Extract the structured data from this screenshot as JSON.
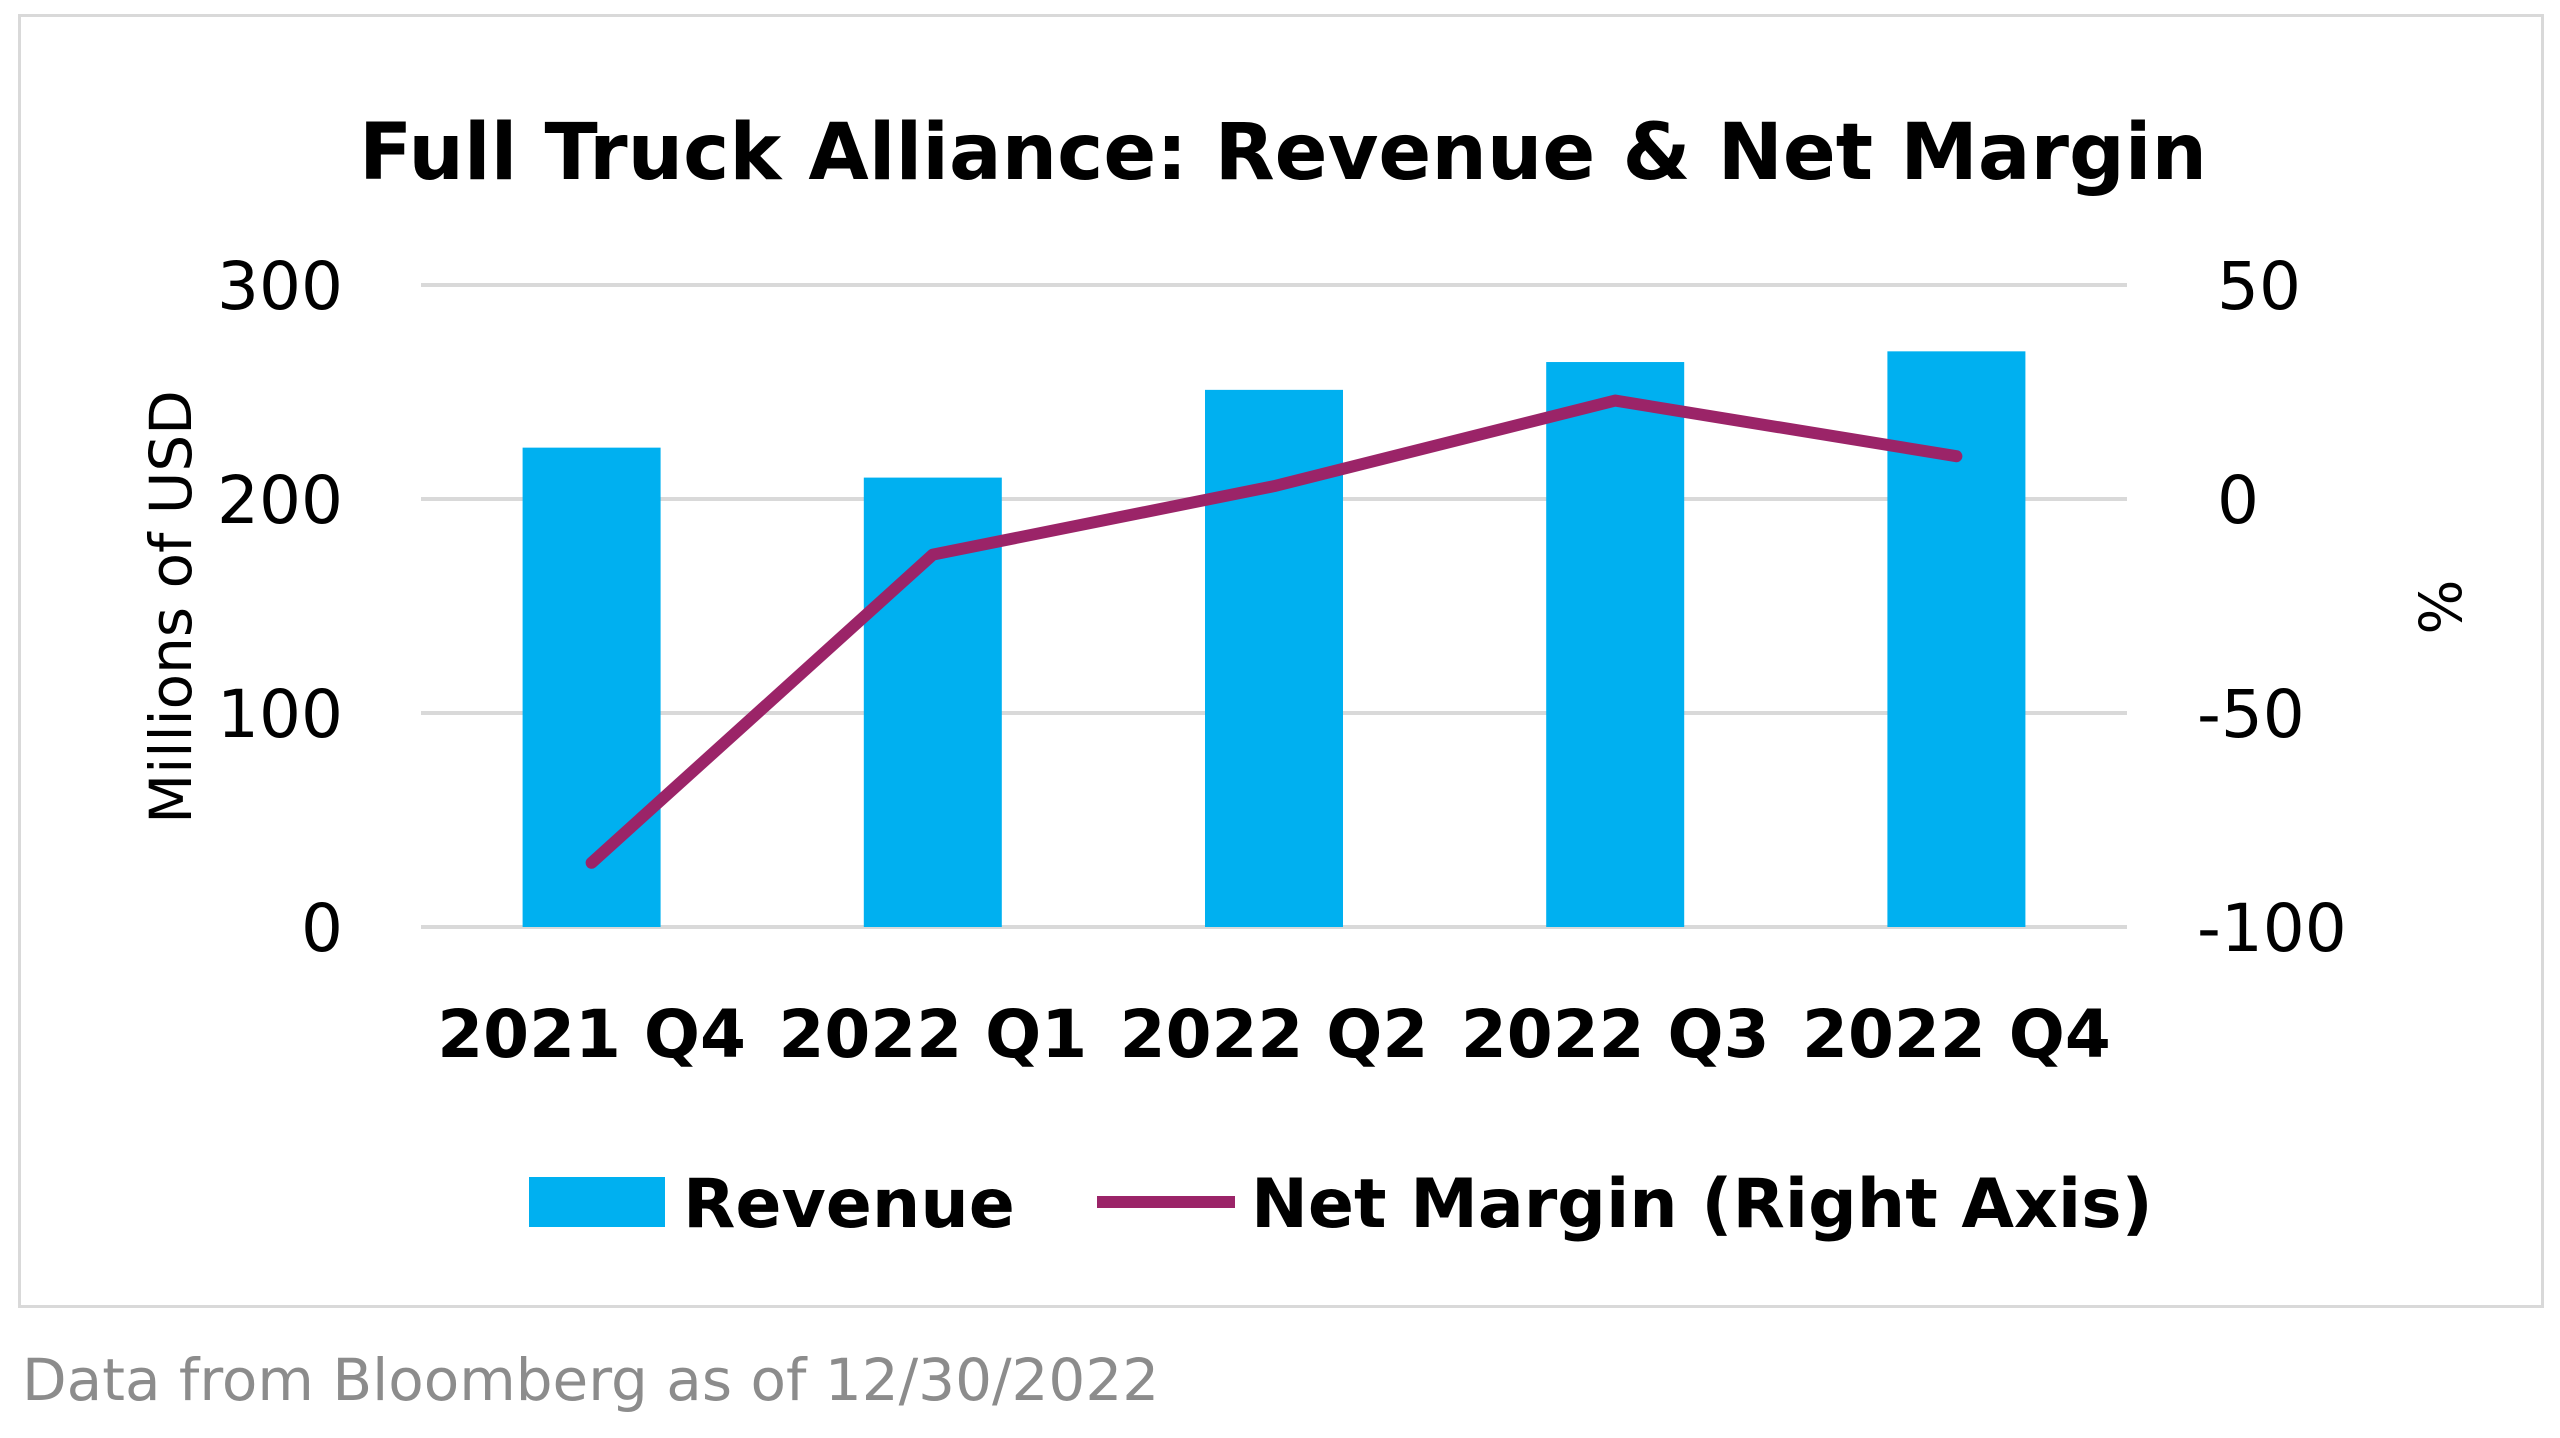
{
  "chart_data": {
    "type": "bar",
    "title": "Full Truck Alliance: Revenue & Net Margin",
    "categories": [
      "2021 Q4",
      "2022 Q1",
      "2022 Q2",
      "2022 Q3",
      "2022 Q4"
    ],
    "series": [
      {
        "name": "Revenue",
        "type": "bar",
        "axis": "left",
        "color": "#00b0f0",
        "values": [
          224,
          210,
          251,
          264,
          269
        ]
      },
      {
        "name": "Net Margin (Right Axis)",
        "type": "line",
        "axis": "right",
        "color": "#9b2468",
        "values": [
          -85,
          -13,
          3,
          23,
          10
        ]
      }
    ],
    "y_left": {
      "label": "Millions of USD",
      "range": [
        0,
        300
      ],
      "ticks": [
        "0",
        "100",
        "200",
        "300"
      ]
    },
    "y_right": {
      "label": "%",
      "range": [
        -100,
        50
      ],
      "ticks": [
        "-100",
        "-50",
        "0",
        "50"
      ]
    },
    "grid": true,
    "gridline_color": "#d9d9d9",
    "legend_position": "bottom"
  },
  "source_note": "Data from Bloomberg as of 12/30/2022"
}
